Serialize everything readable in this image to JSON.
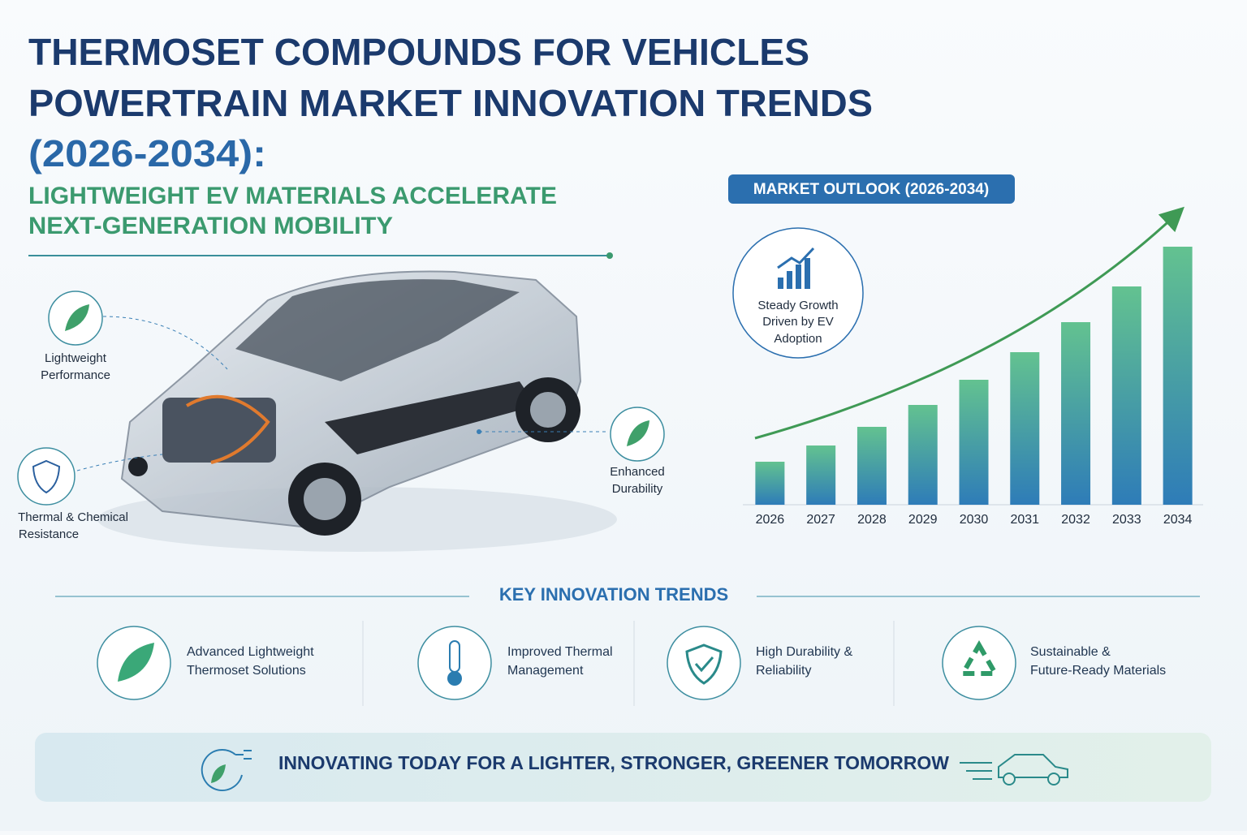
{
  "header": {
    "title_lines": [
      "THERMOSET COMPOUNDS FOR VEHICLES",
      "POWERTRAIN MARKET INNOVATION TRENDS",
      "(2026-2034):"
    ],
    "subtitle_lines": [
      "LIGHTWEIGHT EV MATERIALS ACCELERATE",
      "NEXT-GENERATION MOBILITY"
    ]
  },
  "features": [
    {
      "lines": [
        "Lightweight",
        "Performance"
      ]
    },
    {
      "lines": [
        "Thermal & Chemical",
        "Resistance"
      ]
    },
    {
      "lines": [
        "Enhanced",
        "Durability"
      ]
    }
  ],
  "chart_data": {
    "type": "bar",
    "title": "MARKET OUTLOOK (2026-2034)",
    "annotation": [
      "Steady Growth",
      "Driven by EV",
      "Adoption"
    ],
    "categories": [
      "2026",
      "2027",
      "2028",
      "2029",
      "2030",
      "2031",
      "2032",
      "2033",
      "2034"
    ],
    "values": [
      53,
      73,
      96,
      123,
      154,
      188,
      225,
      269,
      318
    ],
    "gradient": [
      "#63c290",
      "#2e7cb8"
    ]
  },
  "trends": {
    "title": "KEY INNOVATION TRENDS",
    "items": [
      {
        "lines": [
          "Advanced Lightweight",
          "Thermoset Solutions"
        ]
      },
      {
        "lines": [
          "Improved Thermal",
          "Management"
        ]
      },
      {
        "lines": [
          "High Durability &",
          "Reliability"
        ]
      },
      {
        "lines": [
          "Sustainable &",
          "Future-Ready Materials"
        ]
      }
    ]
  },
  "footer": "INNOVATING TODAY FOR A LIGHTER, STRONGER, GREENER TOMORROW"
}
